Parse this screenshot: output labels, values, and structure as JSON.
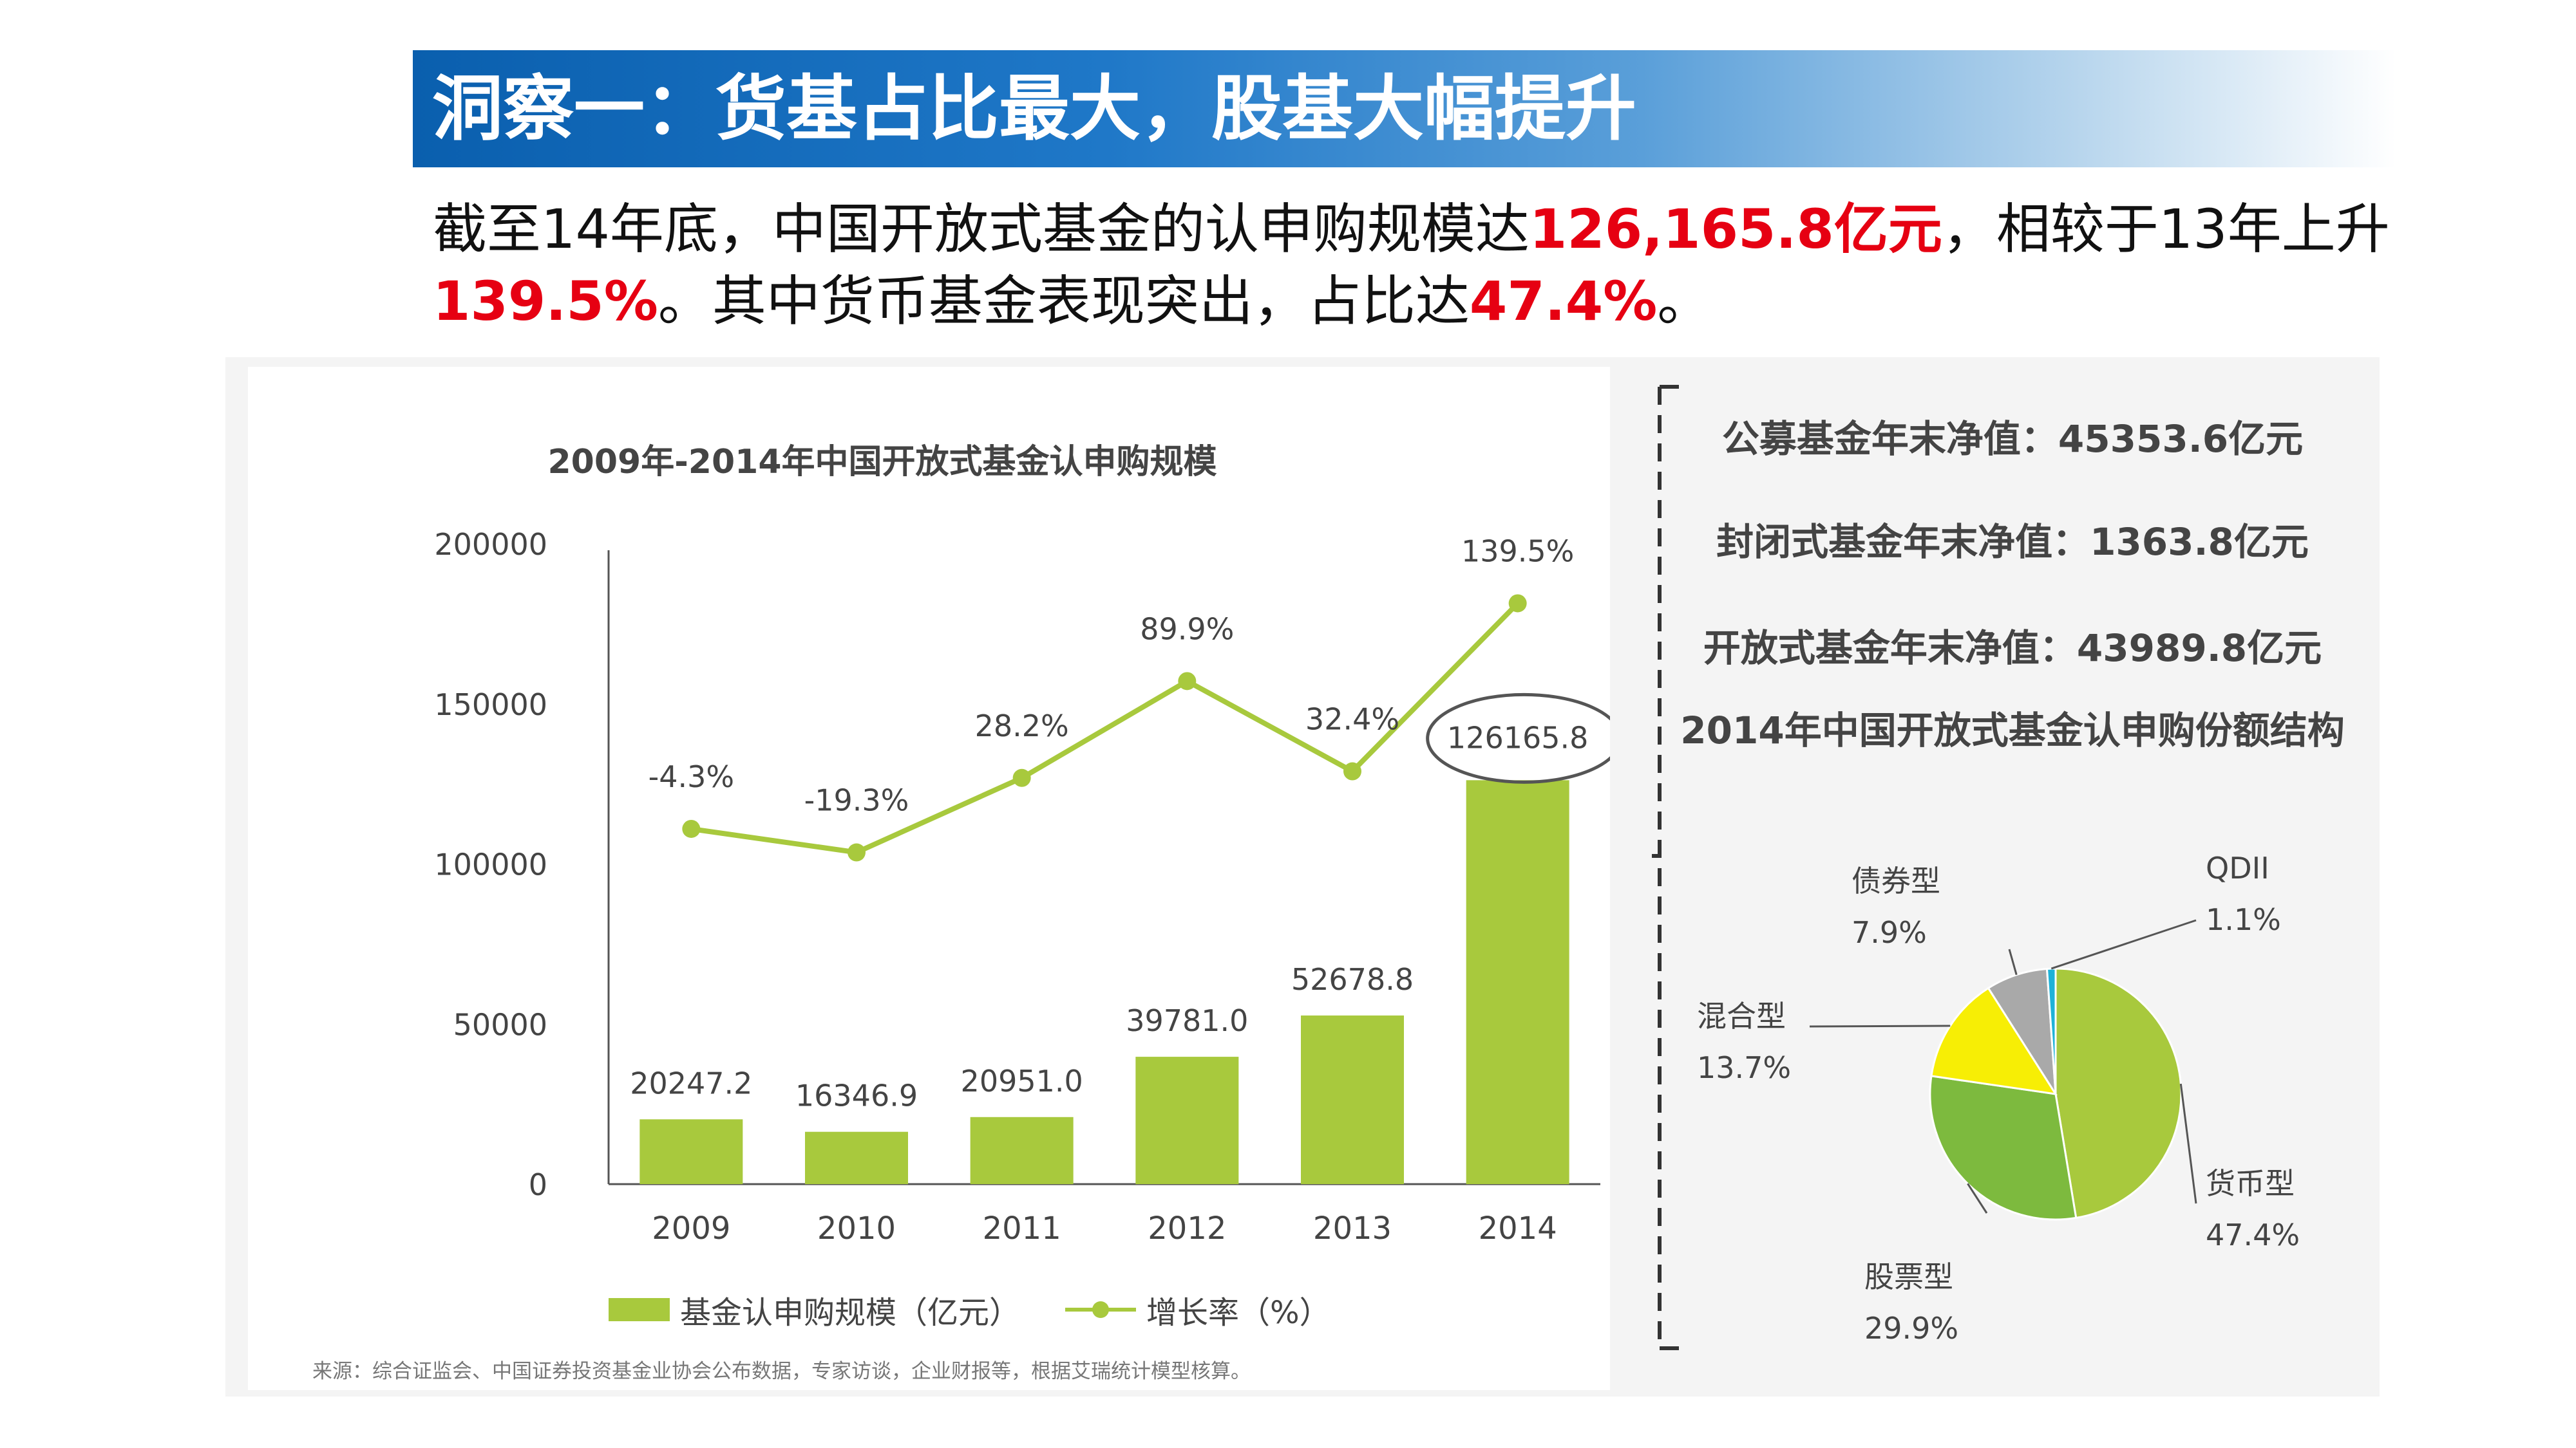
{
  "header": {
    "title": "洞察一：货基占比最大，股基大幅提升"
  },
  "intro": {
    "part1": "截至14年底，中国开放式基金的认申购规模达",
    "hl1": "126,165.8亿元",
    "part2": "，相较于13年上升",
    "hl2": "139.5%",
    "part3": "。其中货币基金表现突出，占比达",
    "hl3": "47.4%",
    "part4": "。"
  },
  "colors": {
    "banner": "#1f78c8",
    "highlight": "#e60012",
    "bar": "#a8c93d",
    "pie_currency": "#a8c93d",
    "pie_stock": "#7dba3e",
    "pie_mixed": "#f7ee05",
    "pie_bond": "#a9a9a9",
    "pie_qdii": "#1eb2d8"
  },
  "stats": {
    "public_fund": "公募基金年末净值：45353.6亿元",
    "closed_fund": "封闭式基金年末净值：1363.8亿元",
    "open_fund": "开放式基金年末净值：43989.8亿元"
  },
  "source": "来源：综合证监会、中国证券投资基金业协会公布数据，专家访谈，企业财报等，根据艾瑞统计模型核算。",
  "chart_data": [
    {
      "type": "bar",
      "title": "2009年-2014年中国开放式基金认申购规模",
      "categories": [
        "2009",
        "2010",
        "2011",
        "2012",
        "2013",
        "2014"
      ],
      "series": [
        {
          "name": "基金认申购规模（亿元）",
          "type": "bar",
          "values": [
            20247.2,
            16346.9,
            20951.0,
            39781.0,
            52678.8,
            126165.8
          ],
          "labels": [
            "20247.2",
            "16346.9",
            "20951.0",
            "39781.0",
            "52678.8",
            "126165.8"
          ]
        },
        {
          "name": "增长率（%）",
          "type": "line",
          "values": [
            -4.3,
            -19.3,
            28.2,
            89.9,
            32.4,
            139.5
          ],
          "labels": [
            "-4.3%",
            "-19.3%",
            "28.2%",
            "89.9%",
            "32.4%",
            "139.5%"
          ]
        }
      ],
      "yticks": [
        "0",
        "50000",
        "100000",
        "150000",
        "200000"
      ],
      "ylim": [
        0,
        200000
      ],
      "legend": "bottom",
      "grid": false
    },
    {
      "type": "pie",
      "title": "2014年中国开放式基金认申购份额结构",
      "slices": [
        {
          "name": "货币型",
          "value": 47.4,
          "label": "47.4%"
        },
        {
          "name": "股票型",
          "value": 29.9,
          "label": "29.9%"
        },
        {
          "name": "混合型",
          "value": 13.7,
          "label": "13.7%"
        },
        {
          "name": "债券型",
          "value": 7.9,
          "label": "7.9%"
        },
        {
          "name": "QDII",
          "value": 1.1,
          "label": "1.1%"
        }
      ]
    }
  ]
}
